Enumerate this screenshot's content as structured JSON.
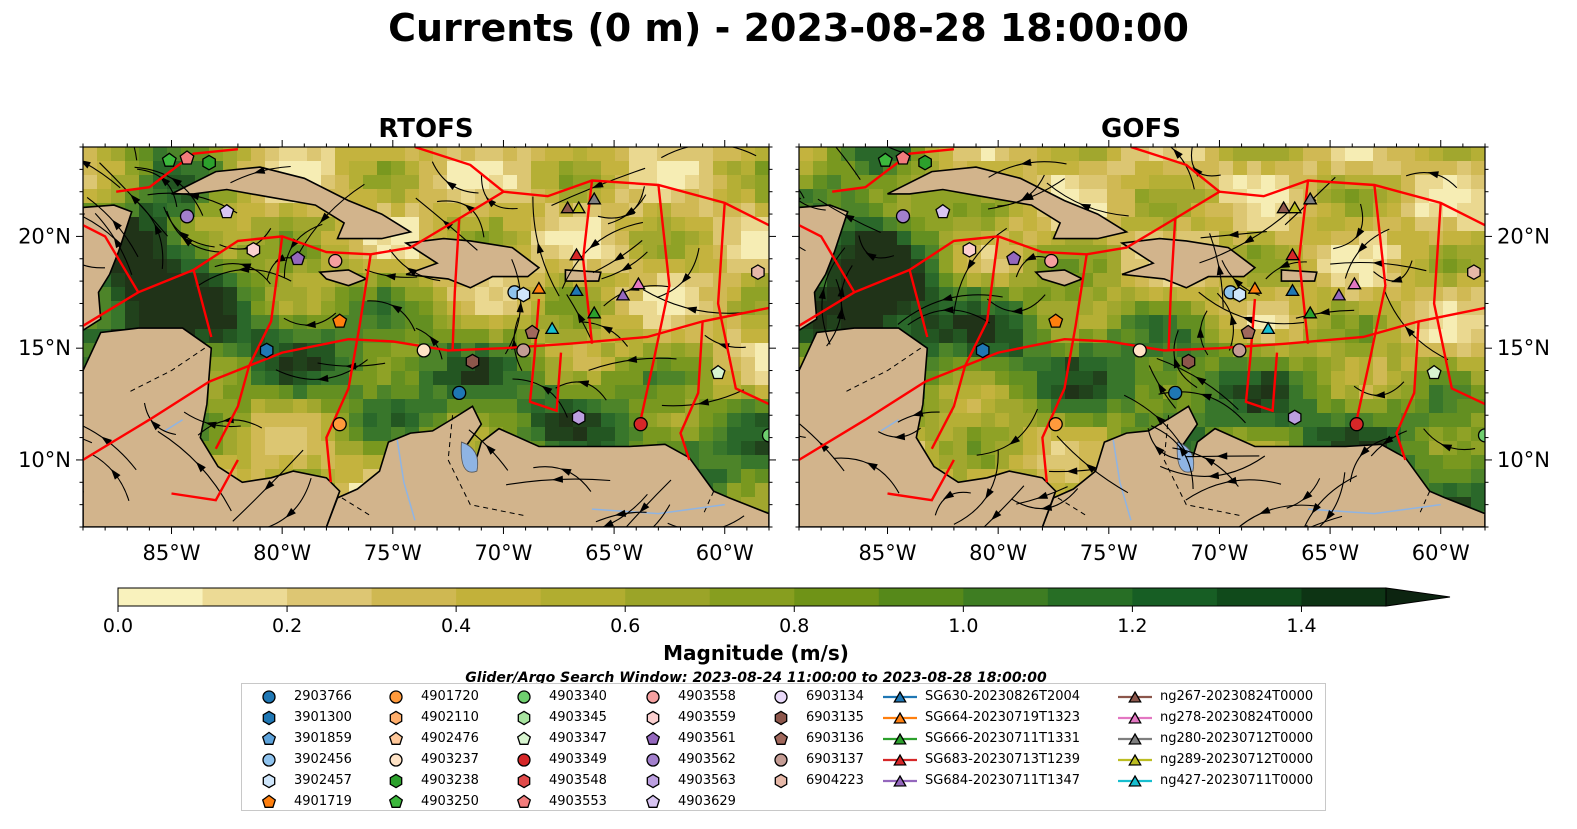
{
  "title": "Currents (0 m) - 2023-08-28 18:00:00",
  "panels": [
    {
      "title": "RTOFS"
    },
    {
      "title": "GOFS"
    }
  ],
  "lat_ticks": [
    "20°N",
    "15°N",
    "10°N"
  ],
  "lon_ticks": [
    "85°W",
    "80°W",
    "75°W",
    "70°W",
    "65°W",
    "60°W"
  ],
  "map_extent": {
    "lon": [
      -89,
      -58
    ],
    "lat": [
      7,
      24
    ]
  },
  "colorbar": {
    "label": "Magnitude (m/s)",
    "ticks": [
      "0.0",
      "0.2",
      "0.4",
      "0.6",
      "0.8",
      "1.0",
      "1.2",
      "1.4"
    ],
    "range": [
      0,
      1.5
    ],
    "colors": [
      "#f9f2bd",
      "#ecda95",
      "#ddc673",
      "#cfb852",
      "#c2b13a",
      "#b1ad30",
      "#9ba428",
      "#879e1f",
      "#6f9317",
      "#56891a",
      "#3e7d22",
      "#276e25",
      "#175e24",
      "#104a1b",
      "#0d3414",
      "#0c2410"
    ]
  },
  "search_window": "Glider/Argo Search Window: 2023-08-24 11:00:00 to 2023-08-28 18:00:00",
  "legend": {
    "columns": [
      [
        {
          "label": "2903766",
          "color": "#1f77b4",
          "marker": "circle"
        },
        {
          "label": "3901300",
          "color": "#1f77b4",
          "marker": "hexagon"
        },
        {
          "label": "3901859",
          "color": "#5ea3db",
          "marker": "pentagon"
        },
        {
          "label": "3902456",
          "color": "#8fc3ee",
          "marker": "circle"
        },
        {
          "label": "3902457",
          "color": "#cfe6fb",
          "marker": "hexagon"
        },
        {
          "label": "4901719",
          "color": "#ff7f0e",
          "marker": "pentagon"
        }
      ],
      [
        {
          "label": "4901720",
          "color": "#ff9a3c",
          "marker": "circle"
        },
        {
          "label": "4902110",
          "color": "#ffae6b",
          "marker": "hexagon"
        },
        {
          "label": "4902476",
          "color": "#ffc89a",
          "marker": "pentagon"
        },
        {
          "label": "4903237",
          "color": "#ffe3c6",
          "marker": "circle"
        },
        {
          "label": "4903238",
          "color": "#2ca02c",
          "marker": "hexagon"
        },
        {
          "label": "4903250",
          "color": "#3cb73c",
          "marker": "pentagon"
        }
      ],
      [
        {
          "label": "4903340",
          "color": "#6fcf6f",
          "marker": "circle"
        },
        {
          "label": "4903345",
          "color": "#a8e4a0",
          "marker": "hexagon"
        },
        {
          "label": "4903347",
          "color": "#d8f5d0",
          "marker": "pentagon"
        },
        {
          "label": "4903349",
          "color": "#d62728",
          "marker": "circle"
        },
        {
          "label": "4903548",
          "color": "#e04a4a",
          "marker": "hexagon"
        },
        {
          "label": "4903553",
          "color": "#f27c7c",
          "marker": "pentagon"
        }
      ],
      [
        {
          "label": "4903558",
          "color": "#f5a0a0",
          "marker": "circle"
        },
        {
          "label": "4903559",
          "color": "#fbd0d0",
          "marker": "hexagon"
        },
        {
          "label": "4903561",
          "color": "#9467bd",
          "marker": "pentagon"
        },
        {
          "label": "4903562",
          "color": "#a27fcc",
          "marker": "circle"
        },
        {
          "label": "4903563",
          "color": "#bc9fe0",
          "marker": "hexagon"
        },
        {
          "label": "4903629",
          "color": "#d8c4f2",
          "marker": "pentagon"
        }
      ],
      [
        {
          "label": "6903134",
          "color": "#e8d8f8",
          "marker": "circle"
        },
        {
          "label": "6903135",
          "color": "#8c564b",
          "marker": "hexagon"
        },
        {
          "label": "6903136",
          "color": "#a0685c",
          "marker": "pentagon"
        },
        {
          "label": "6903137",
          "color": "#c49c94",
          "marker": "circle"
        },
        {
          "label": "6904223",
          "color": "#e6b8a8",
          "marker": "hexagon"
        }
      ],
      [
        {
          "label": "SG630-20230826T2004",
          "color": "#1f77b4",
          "marker": "triangle"
        },
        {
          "label": "SG664-20230719T1323",
          "color": "#ff7f0e",
          "marker": "triangle"
        },
        {
          "label": "SG666-20230711T1331",
          "color": "#2ca02c",
          "marker": "triangle"
        },
        {
          "label": "SG683-20230713T1239",
          "color": "#d62728",
          "marker": "triangle"
        },
        {
          "label": "SG684-20230711T1347",
          "color": "#9467bd",
          "marker": "triangle"
        }
      ],
      [
        {
          "label": "ng267-20230824T0000",
          "color": "#8c564b",
          "marker": "triangle"
        },
        {
          "label": "ng278-20230824T0000",
          "color": "#e377c2",
          "marker": "triangle"
        },
        {
          "label": "ng280-20230712T0000",
          "color": "#7f7f7f",
          "marker": "triangle"
        },
        {
          "label": "ng289-20230712T0000",
          "color": "#bcbd22",
          "marker": "triangle"
        },
        {
          "label": "ng427-20230711T0000",
          "color": "#17becf",
          "marker": "triangle"
        }
      ]
    ]
  },
  "platforms": [
    {
      "label": "2903766",
      "lon": -72.0,
      "lat": 13.0
    },
    {
      "label": "3901300",
      "lon": -80.7,
      "lat": 14.9
    },
    {
      "label": "3902456",
      "lon": -69.5,
      "lat": 17.5
    },
    {
      "label": "3902457",
      "lon": -69.1,
      "lat": 17.4
    },
    {
      "label": "4901719",
      "lon": -77.4,
      "lat": 16.2
    },
    {
      "label": "4901720",
      "lon": -77.4,
      "lat": 11.6
    },
    {
      "label": "4903237",
      "lon": -73.6,
      "lat": 14.9
    },
    {
      "label": "4903238",
      "lon": -83.3,
      "lat": 23.3
    },
    {
      "label": "4903250",
      "lon": -85.1,
      "lat": 23.4
    },
    {
      "label": "4903340",
      "lon": -58.0,
      "lat": 11.1
    },
    {
      "label": "4903347",
      "lon": -60.3,
      "lat": 13.9
    },
    {
      "label": "4903349",
      "lon": -63.8,
      "lat": 11.6
    },
    {
      "label": "4903553",
      "lon": -84.3,
      "lat": 23.5
    },
    {
      "label": "4903558",
      "lon": -77.6,
      "lat": 18.9
    },
    {
      "label": "4903559",
      "lon": -81.3,
      "lat": 19.4
    },
    {
      "label": "4903561",
      "lon": -79.3,
      "lat": 19.0
    },
    {
      "label": "4903562",
      "lon": -84.3,
      "lat": 20.9
    },
    {
      "label": "4903563",
      "lon": -66.6,
      "lat": 11.9
    },
    {
      "label": "4903629",
      "lon": -82.5,
      "lat": 21.1
    },
    {
      "label": "6903135",
      "lon": -71.4,
      "lat": 14.4
    },
    {
      "label": "6903136",
      "lon": -68.7,
      "lat": 15.7
    },
    {
      "label": "6903137",
      "lon": -69.1,
      "lat": 14.9
    },
    {
      "label": "6904223",
      "lon": -58.5,
      "lat": 18.4
    },
    {
      "label": "SG630-20230826T2004",
      "lon": -66.7,
      "lat": 17.6
    },
    {
      "label": "SG664-20230719T1323",
      "lon": -68.4,
      "lat": 17.7
    },
    {
      "label": "SG666-20230711T1331",
      "lon": -65.9,
      "lat": 16.6
    },
    {
      "label": "SG683-20230713T1239",
      "lon": -66.7,
      "lat": 19.2
    },
    {
      "label": "SG684-20230711T1347",
      "lon": -64.6,
      "lat": 17.4
    },
    {
      "label": "ng267-20230824T0000",
      "lon": -67.1,
      "lat": 21.3
    },
    {
      "label": "ng278-20230824T0000",
      "lon": -63.9,
      "lat": 17.9
    },
    {
      "label": "ng280-20230712T0000",
      "lon": -65.9,
      "lat": 21.7
    },
    {
      "label": "ng289-20230712T0000",
      "lon": -66.6,
      "lat": 21.3
    },
    {
      "label": "ng427-20230711T0000",
      "lon": -67.8,
      "lat": 15.9
    }
  ]
}
